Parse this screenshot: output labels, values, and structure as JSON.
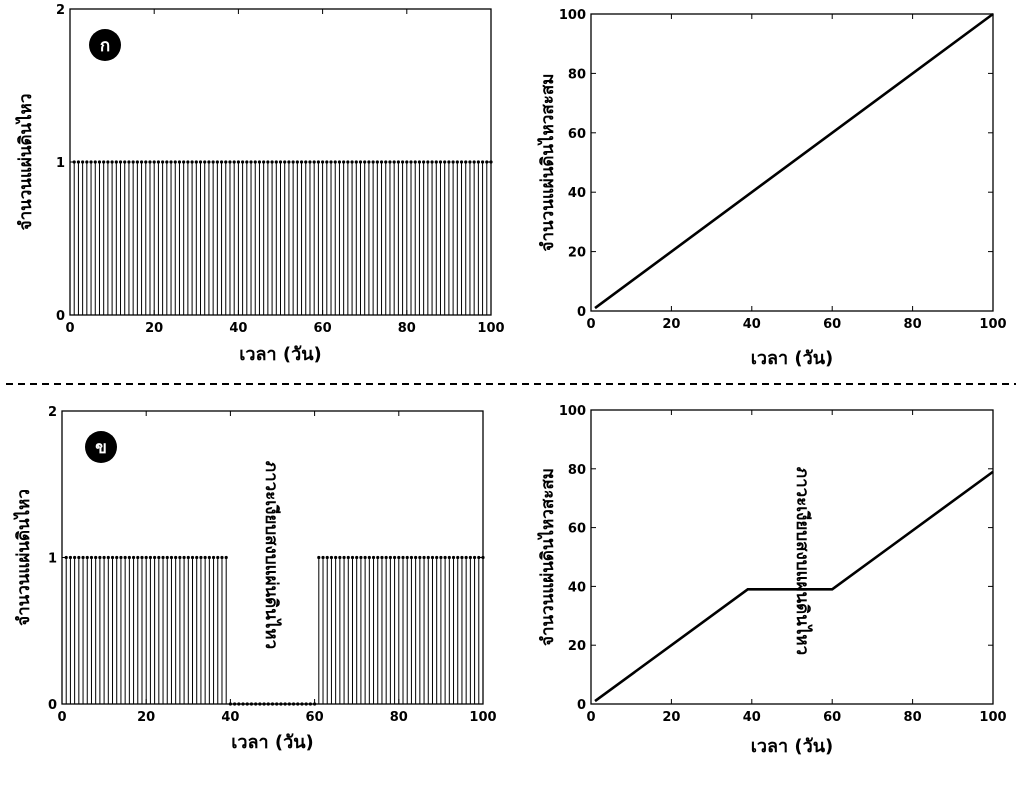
{
  "chart_data": [
    {
      "id": "a-daily",
      "type": "stem",
      "badge": "ก",
      "xlabel": "เวลา (วัน)",
      "ylabel": "จำนวนแผ่นดินไหว",
      "xlim": [
        0,
        100
      ],
      "ylim": [
        0,
        2
      ],
      "xticks": [
        0,
        20,
        40,
        60,
        80,
        100
      ],
      "yticks": [
        0,
        1,
        2
      ],
      "series": [
        {
          "x_start": 1,
          "x_end": 100,
          "value": 1
        }
      ],
      "annotation": ""
    },
    {
      "id": "a-cumulative",
      "type": "line",
      "xlabel": "เวลา (วัน)",
      "ylabel": "จำนวนแผ่นดินไหวสะสม",
      "xlim": [
        0,
        100
      ],
      "ylim": [
        0,
        100
      ],
      "xticks": [
        0,
        20,
        40,
        60,
        80,
        100
      ],
      "yticks": [
        0,
        20,
        40,
        60,
        80,
        100
      ],
      "points": [
        [
          1,
          1
        ],
        [
          100,
          100
        ]
      ],
      "annotation": ""
    },
    {
      "id": "b-daily",
      "type": "stem",
      "badge": "ข",
      "xlabel": "เวลา (วัน)",
      "ylabel": "จำนวนแผ่นดินไหว",
      "xlim": [
        0,
        100
      ],
      "ylim": [
        0,
        2
      ],
      "xticks": [
        0,
        20,
        40,
        60,
        80,
        100
      ],
      "yticks": [
        0,
        1,
        2
      ],
      "series": [
        {
          "x_start": 1,
          "x_end": 39,
          "value": 1
        },
        {
          "x_start": 40,
          "x_end": 60,
          "value": 0
        },
        {
          "x_start": 61,
          "x_end": 100,
          "value": 1
        }
      ],
      "annotation": "ภาวะเงียบสงบแผ่นดินไหว"
    },
    {
      "id": "b-cumulative",
      "type": "line",
      "xlabel": "เวลา (วัน)",
      "ylabel": "จำนวนแผ่นดินไหวสะสม",
      "xlim": [
        0,
        100
      ],
      "ylim": [
        0,
        100
      ],
      "xticks": [
        0,
        20,
        40,
        60,
        80,
        100
      ],
      "yticks": [
        0,
        20,
        40,
        60,
        80,
        100
      ],
      "points": [
        [
          1,
          1
        ],
        [
          39,
          39
        ],
        [
          60,
          39
        ],
        [
          100,
          79
        ]
      ],
      "annotation": "ภาวะเงียบสงบแผ่นดินไหว"
    }
  ]
}
